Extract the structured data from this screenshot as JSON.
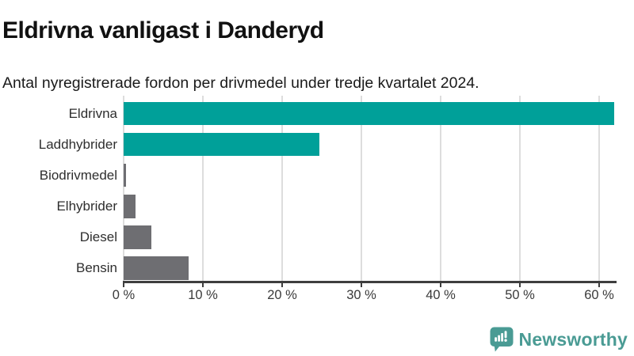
{
  "header": {
    "title": "Eldrivna vanligast i Danderyd",
    "subtitle": "Antal nyregistrerade fordon per drivmedel under tredje kvartalet 2024."
  },
  "colors": {
    "accent_teal": "#00a099",
    "bar_gray": "#6e6e72",
    "gridline": "#dddddd",
    "axis": "#3e3e3e",
    "logo_teal": "#4a9b94"
  },
  "chart_data": {
    "type": "bar",
    "orientation": "horizontal",
    "title": "Eldrivna vanligast i Danderyd",
    "subtitle": "Antal nyregistrerade fordon per drivmedel under tredje kvartalet 2024.",
    "categories": [
      "Eldrivna",
      "Laddhybrider",
      "Biodrivmedel",
      "Elhybrider",
      "Diesel",
      "Bensin"
    ],
    "values": [
      61.9,
      24.7,
      0.3,
      1.5,
      3.5,
      8.2
    ],
    "bar_colors": [
      "#00a099",
      "#00a099",
      "#6e6e72",
      "#6e6e72",
      "#6e6e72",
      "#6e6e72"
    ],
    "unit": "%",
    "xlabel": "",
    "ylabel": "",
    "xlim": [
      0,
      62.1
    ],
    "x_tick_values": [
      0,
      10,
      20,
      30,
      40,
      50,
      60
    ],
    "x_tick_labels": [
      "0 %",
      "10 %",
      "20 %",
      "30 %",
      "40 %",
      "50 %",
      "60 %"
    ],
    "grid": "vertical-only",
    "legend": "none"
  },
  "footer": {
    "brand": "Newsworthy",
    "logo_icon": "speech-bubble-bar-chart-icon"
  }
}
